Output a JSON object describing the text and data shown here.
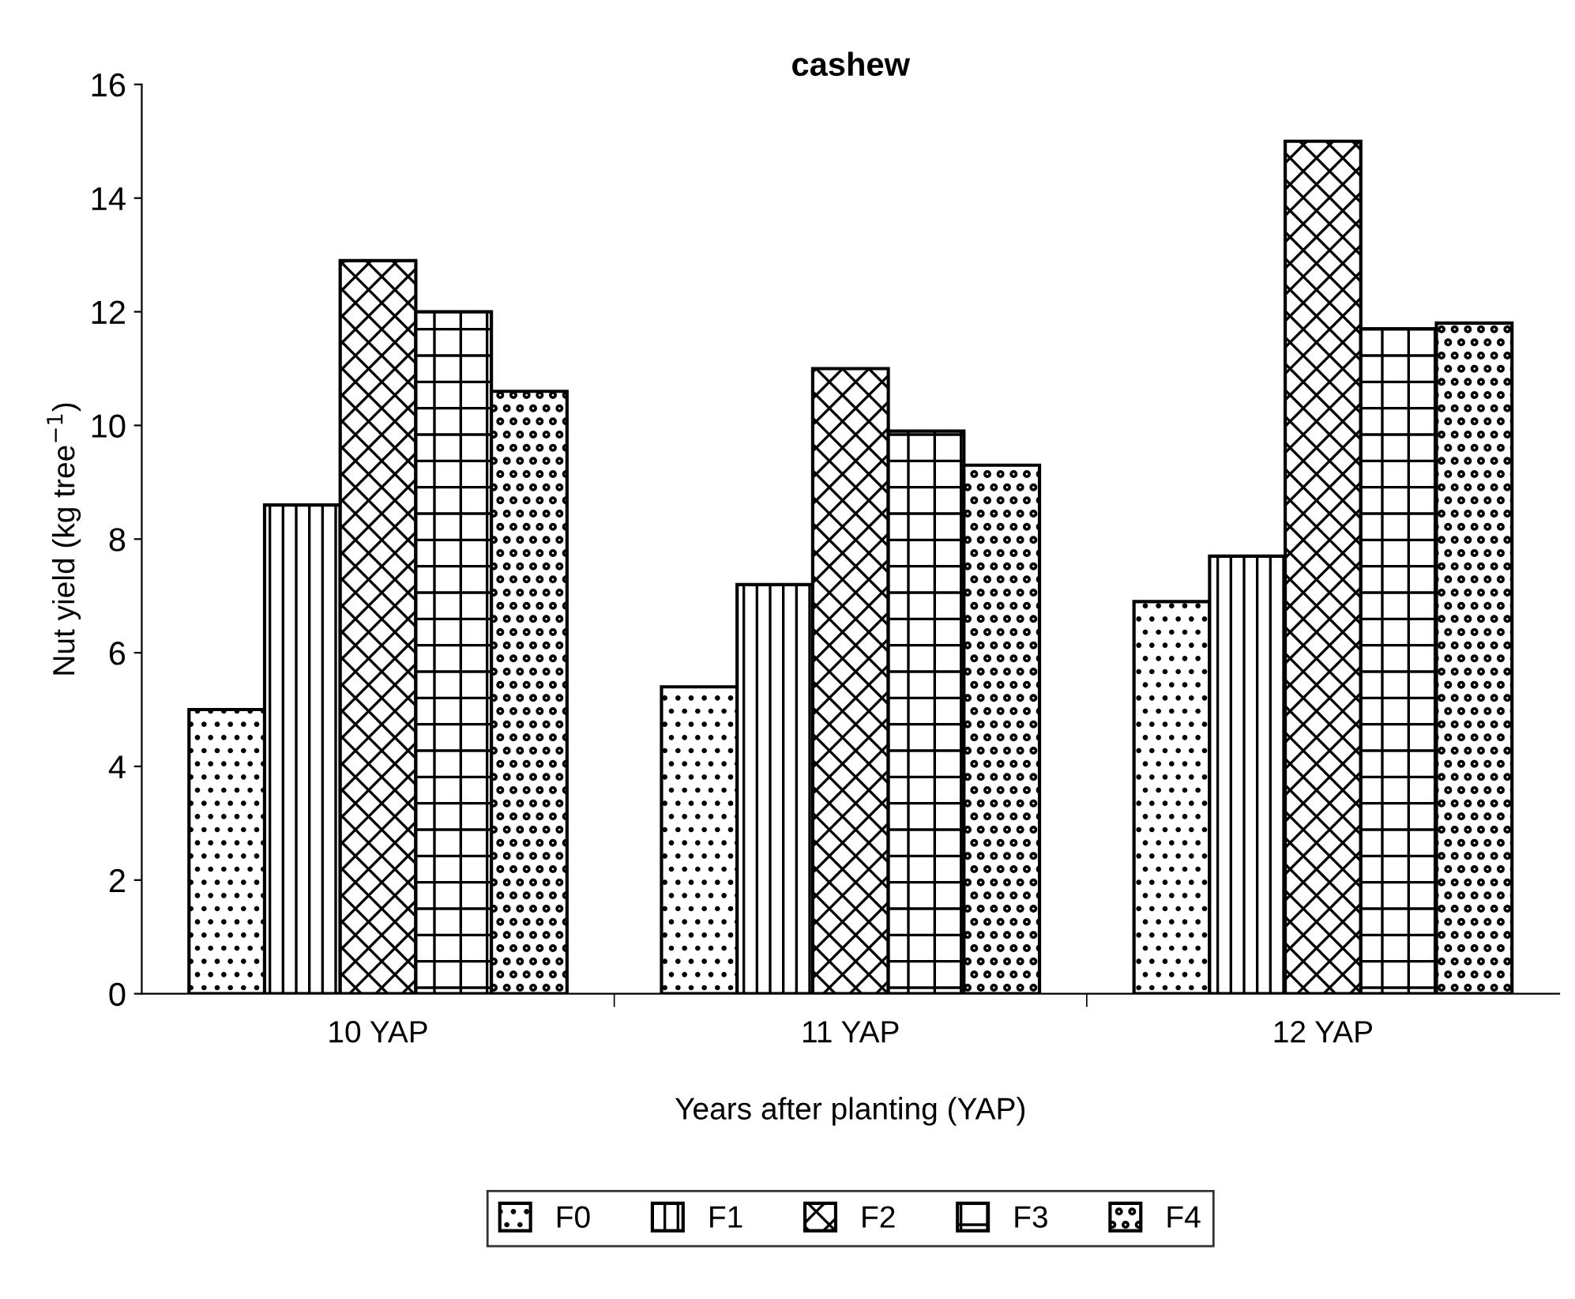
{
  "chart_data": {
    "type": "bar",
    "title": "cashew",
    "xlabel": "Years after planting (YAP)",
    "ylabel": "Nut yield (kg tree$^{−1}$)",
    "categories": [
      "10 YAP",
      "11 YAP",
      "12 YAP"
    ],
    "series": [
      {
        "name": "F0",
        "color": "#000000",
        "values": [
          5.0,
          5.4,
          6.9
        ]
      },
      {
        "name": "F1",
        "color": "#000000",
        "values": [
          8.6,
          7.2,
          7.7
        ]
      },
      {
        "name": "F2",
        "color": "#000000",
        "values": [
          12.9,
          11.0,
          15.0
        ]
      },
      {
        "name": "F3",
        "color": "#000000",
        "values": [
          12.0,
          9.9,
          11.7
        ]
      },
      {
        "name": "F4",
        "color": "#000000",
        "values": [
          10.6,
          9.3,
          11.8
        ]
      }
    ],
    "ylim": [
      0,
      16
    ],
    "yticks": [
      0,
      2,
      4,
      6,
      8,
      10,
      12,
      14,
      16
    ],
    "grid": false,
    "legend": "bottom"
  }
}
